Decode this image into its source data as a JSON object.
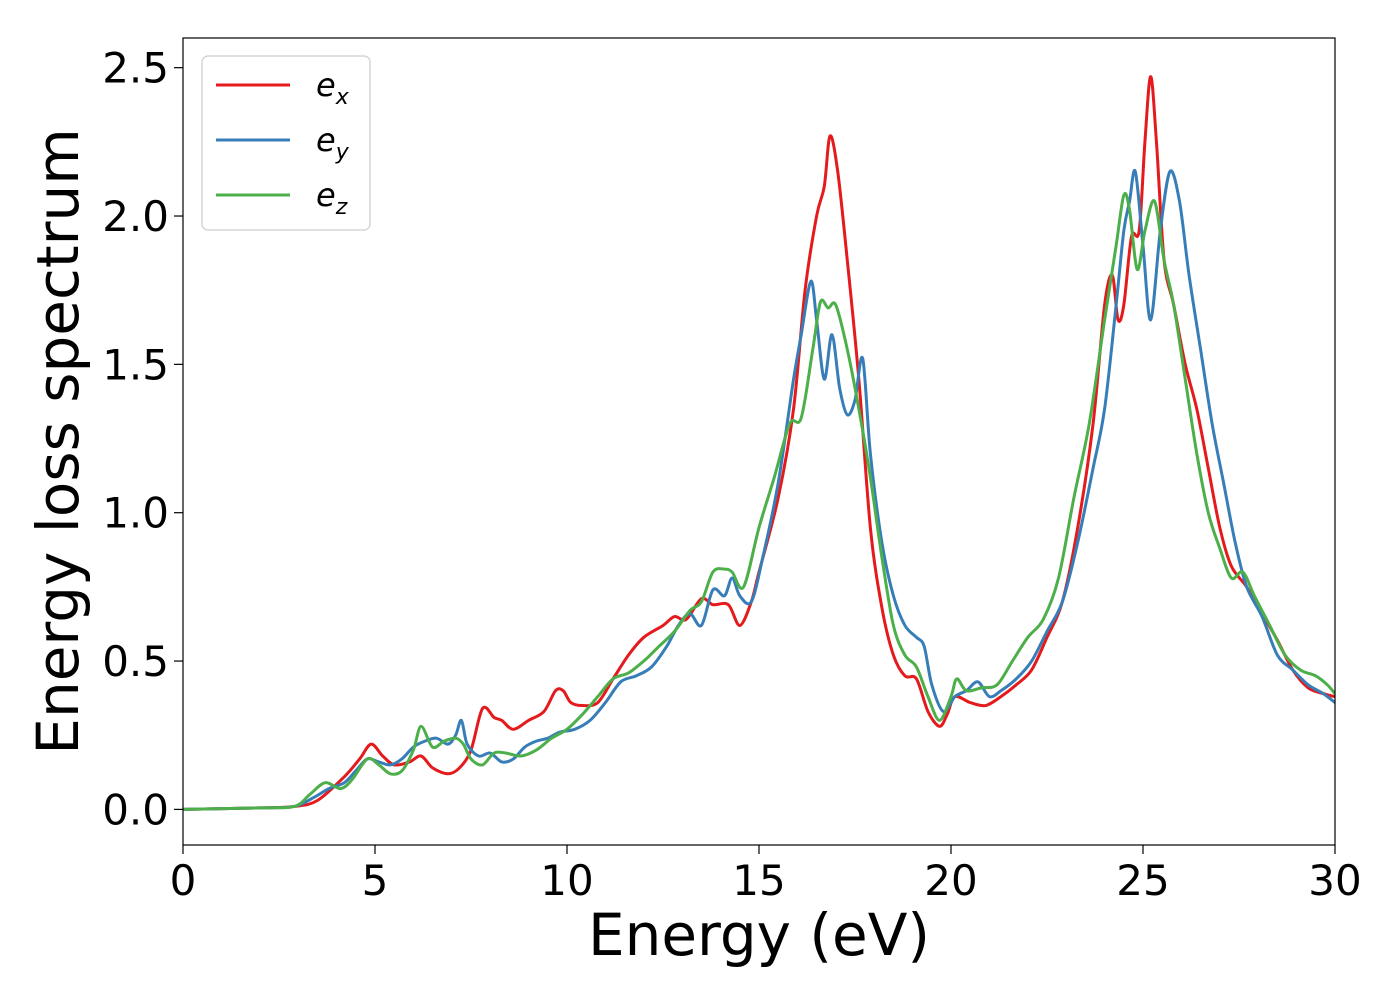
{
  "chart_data": {
    "type": "line",
    "xlabel": "Energy (eV)",
    "ylabel": "Energy loss spectrum",
    "xlim": [
      0,
      30
    ],
    "ylim": [
      -0.12,
      2.6
    ],
    "xticks": [
      0,
      5,
      10,
      15,
      20,
      25,
      30
    ],
    "yticks": [
      0.0,
      0.5,
      1.0,
      1.5,
      2.0,
      2.5
    ],
    "xtick_labels": [
      "0",
      "5",
      "10",
      "15",
      "20",
      "25",
      "30"
    ],
    "ytick_labels": [
      "0.0",
      "0.5",
      "1.0",
      "1.5",
      "2.0",
      "2.5"
    ],
    "grid": false,
    "legend_position": "top-left",
    "series": [
      {
        "name": "e_x",
        "label_base": "e",
        "label_sub": "x",
        "color": "#e41a1c",
        "x": [
          0,
          2,
          2.9,
          3.5,
          4.2,
          4.6,
          4.9,
          5.2,
          5.5,
          5.9,
          6.2,
          6.5,
          6.9,
          7.2,
          7.5,
          7.8,
          8.1,
          8.3,
          8.6,
          9.0,
          9.4,
          9.7,
          9.9,
          10.1,
          10.4,
          10.8,
          11.2,
          11.6,
          12.0,
          12.5,
          12.8,
          13.1,
          13.5,
          13.8,
          14.2,
          14.5,
          14.8,
          15.0,
          15.5,
          15.9,
          16.2,
          16.5,
          16.7,
          16.85,
          17.05,
          17.3,
          17.6,
          17.9,
          18.2,
          18.5,
          18.8,
          19.1,
          19.4,
          19.7,
          19.9,
          20.1,
          20.5,
          20.9,
          21.3,
          21.7,
          22.1,
          22.5,
          22.9,
          23.3,
          23.7,
          24.0,
          24.2,
          24.35,
          24.5,
          24.7,
          24.9,
          25.05,
          25.2,
          25.35,
          25.55,
          25.8,
          26.1,
          26.4,
          26.7,
          27.0,
          27.3,
          27.7,
          28.1,
          28.5,
          28.9,
          29.3,
          29.7,
          30.0
        ],
        "y": [
          0.0,
          0.005,
          0.01,
          0.03,
          0.11,
          0.17,
          0.22,
          0.18,
          0.15,
          0.16,
          0.18,
          0.14,
          0.12,
          0.14,
          0.2,
          0.34,
          0.31,
          0.3,
          0.27,
          0.3,
          0.33,
          0.4,
          0.4,
          0.36,
          0.35,
          0.36,
          0.44,
          0.52,
          0.58,
          0.62,
          0.65,
          0.64,
          0.71,
          0.69,
          0.69,
          0.62,
          0.7,
          0.8,
          1.05,
          1.35,
          1.75,
          2.0,
          2.1,
          2.27,
          2.15,
          1.85,
          1.45,
          0.95,
          0.68,
          0.52,
          0.45,
          0.44,
          0.33,
          0.28,
          0.32,
          0.38,
          0.36,
          0.35,
          0.38,
          0.42,
          0.47,
          0.58,
          0.7,
          0.95,
          1.3,
          1.7,
          1.8,
          1.65,
          1.7,
          1.93,
          1.95,
          2.25,
          2.47,
          2.25,
          1.85,
          1.7,
          1.5,
          1.35,
          1.15,
          0.95,
          0.82,
          0.75,
          0.66,
          0.57,
          0.47,
          0.41,
          0.39,
          0.38
        ]
      },
      {
        "name": "e_y",
        "label_base": "e",
        "label_sub": "y",
        "color": "#377eb8",
        "x": [
          0,
          2,
          2.9,
          3.4,
          3.8,
          4.2,
          4.5,
          4.8,
          5.1,
          5.4,
          5.7,
          6.0,
          6.3,
          6.6,
          6.9,
          7.1,
          7.25,
          7.4,
          7.7,
          8.0,
          8.3,
          8.6,
          8.9,
          9.2,
          9.5,
          9.8,
          10.2,
          10.6,
          11.0,
          11.4,
          11.8,
          12.2,
          12.6,
          12.9,
          13.2,
          13.5,
          13.8,
          14.1,
          14.3,
          14.5,
          14.8,
          15.1,
          15.5,
          15.9,
          16.1,
          16.35,
          16.5,
          16.7,
          16.9,
          17.1,
          17.3,
          17.5,
          17.7,
          17.9,
          18.2,
          18.5,
          18.8,
          19.1,
          19.3,
          19.5,
          19.8,
          20.1,
          20.4,
          20.7,
          21.0,
          21.3,
          21.7,
          22.1,
          22.5,
          22.9,
          23.3,
          23.7,
          24.0,
          24.3,
          24.5,
          24.65,
          24.8,
          25.0,
          25.2,
          25.45,
          25.7,
          25.95,
          26.2,
          26.5,
          26.8,
          27.1,
          27.4,
          27.7,
          28.1,
          28.5,
          28.9,
          29.3,
          29.7,
          30.0
        ],
        "y": [
          0.0,
          0.005,
          0.01,
          0.04,
          0.07,
          0.09,
          0.13,
          0.17,
          0.16,
          0.15,
          0.17,
          0.21,
          0.23,
          0.24,
          0.22,
          0.25,
          0.3,
          0.22,
          0.18,
          0.19,
          0.16,
          0.17,
          0.21,
          0.23,
          0.24,
          0.26,
          0.27,
          0.3,
          0.36,
          0.43,
          0.45,
          0.48,
          0.55,
          0.62,
          0.66,
          0.62,
          0.74,
          0.72,
          0.78,
          0.72,
          0.7,
          0.85,
          1.1,
          1.45,
          1.6,
          1.78,
          1.65,
          1.45,
          1.6,
          1.42,
          1.33,
          1.38,
          1.52,
          1.2,
          0.9,
          0.72,
          0.62,
          0.58,
          0.55,
          0.42,
          0.33,
          0.38,
          0.4,
          0.43,
          0.38,
          0.4,
          0.44,
          0.5,
          0.6,
          0.7,
          0.9,
          1.15,
          1.35,
          1.7,
          1.95,
          2.05,
          2.15,
          1.9,
          1.65,
          1.95,
          2.15,
          2.05,
          1.8,
          1.55,
          1.3,
          1.1,
          0.9,
          0.75,
          0.65,
          0.52,
          0.47,
          0.42,
          0.39,
          0.36
        ]
      },
      {
        "name": "e_z",
        "label_base": "e",
        "label_sub": "z",
        "color": "#4daf4a",
        "x": [
          0,
          2,
          2.9,
          3.3,
          3.7,
          4.1,
          4.4,
          4.8,
          5.1,
          5.4,
          5.7,
          6.0,
          6.2,
          6.5,
          6.8,
          7.1,
          7.3,
          7.5,
          7.8,
          8.1,
          8.4,
          8.8,
          9.2,
          9.6,
          10.0,
          10.4,
          10.8,
          11.2,
          11.6,
          12.0,
          12.4,
          12.8,
          13.2,
          13.5,
          13.8,
          14.1,
          14.3,
          14.6,
          15.0,
          15.4,
          15.8,
          16.1,
          16.4,
          16.6,
          16.8,
          17.0,
          17.3,
          17.6,
          17.9,
          18.2,
          18.5,
          18.8,
          19.1,
          19.4,
          19.7,
          20.0,
          20.15,
          20.4,
          20.8,
          21.2,
          21.6,
          22.0,
          22.4,
          22.8,
          23.2,
          23.6,
          24.0,
          24.3,
          24.5,
          24.65,
          24.85,
          25.05,
          25.3,
          25.55,
          25.8,
          26.1,
          26.4,
          26.7,
          27.0,
          27.3,
          27.6,
          27.9,
          28.3,
          28.7,
          29.1,
          29.5,
          29.8,
          30.0
        ],
        "y": [
          0.0,
          0.005,
          0.01,
          0.05,
          0.09,
          0.07,
          0.1,
          0.17,
          0.15,
          0.12,
          0.13,
          0.2,
          0.28,
          0.21,
          0.23,
          0.24,
          0.22,
          0.17,
          0.15,
          0.19,
          0.19,
          0.18,
          0.2,
          0.24,
          0.27,
          0.32,
          0.38,
          0.44,
          0.46,
          0.5,
          0.55,
          0.6,
          0.67,
          0.7,
          0.8,
          0.81,
          0.8,
          0.75,
          0.95,
          1.12,
          1.3,
          1.32,
          1.55,
          1.71,
          1.69,
          1.7,
          1.55,
          1.35,
          1.12,
          0.85,
          0.62,
          0.52,
          0.48,
          0.38,
          0.3,
          0.38,
          0.44,
          0.4,
          0.41,
          0.42,
          0.5,
          0.58,
          0.64,
          0.78,
          1.05,
          1.3,
          1.65,
          1.9,
          2.07,
          2.02,
          1.82,
          1.95,
          2.05,
          1.85,
          1.7,
          1.45,
          1.2,
          1.0,
          0.88,
          0.78,
          0.8,
          0.72,
          0.62,
          0.52,
          0.47,
          0.45,
          0.42,
          0.39
        ]
      }
    ]
  }
}
